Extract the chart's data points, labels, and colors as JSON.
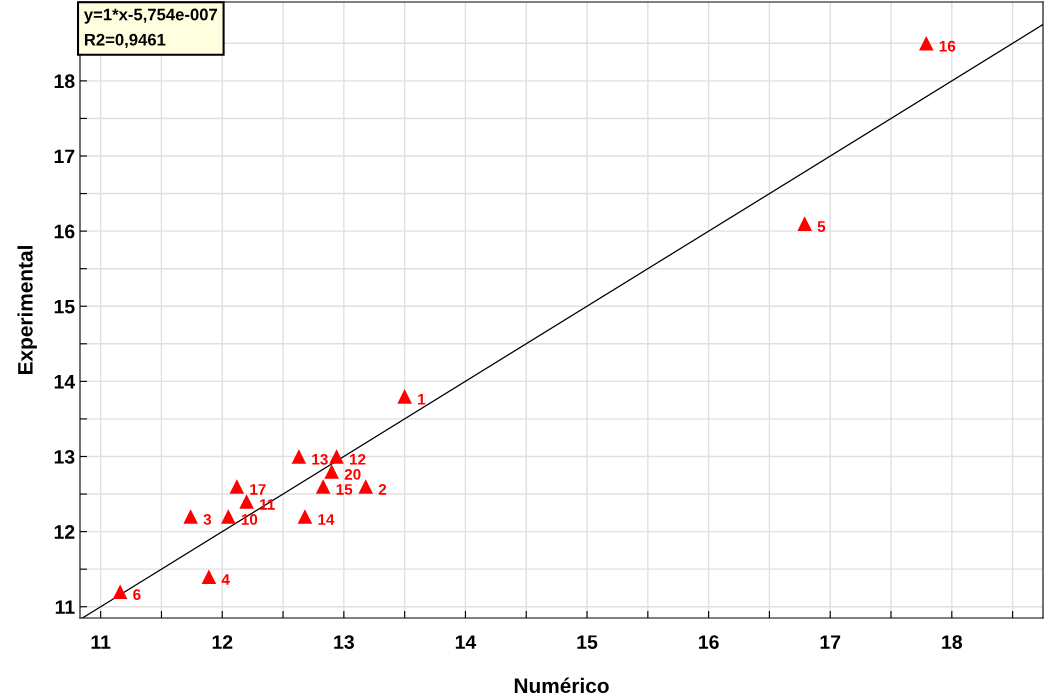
{
  "chart_data": {
    "type": "scatter",
    "xlabel": "Numérico",
    "ylabel": "Experimental",
    "annotations": [
      "y=1*x-5,754e-007\nR2=0,9461",
      {
        "text": "1",
        "x": 13.5,
        "y": 13.8
      },
      {
        "text": "2",
        "x": 13.18,
        "y": 12.6
      },
      {
        "text": "3",
        "x": 11.74,
        "y": 12.2
      },
      {
        "text": "4",
        "x": 11.89,
        "y": 11.4
      },
      {
        "text": "5",
        "x": 16.79,
        "y": 16.1
      },
      {
        "text": "6",
        "x": 11.16,
        "y": 11.2
      },
      {
        "text": "10",
        "x": 12.05,
        "y": 12.2
      },
      {
        "text": "11",
        "x": 12.2,
        "y": 12.4
      },
      {
        "text": "12",
        "x": 12.94,
        "y": 13.0
      },
      {
        "text": "13",
        "x": 12.63,
        "y": 13.0
      },
      {
        "text": "14",
        "x": 12.68,
        "y": 12.2
      },
      {
        "text": "15",
        "x": 12.83,
        "y": 12.6
      },
      {
        "text": "16",
        "x": 17.79,
        "y": 18.5
      },
      {
        "text": "17",
        "x": 12.12,
        "y": 12.6
      },
      {
        "text": "20",
        "x": 12.9,
        "y": 12.8
      }
    ],
    "series": [
      {
        "color": "#ff0000",
        "x": [
          13.5,
          13.18,
          11.74,
          11.89,
          16.79,
          11.16,
          12.05,
          12.2,
          12.94,
          12.63,
          12.68,
          12.83,
          17.79,
          12.12,
          12.9
        ],
        "values": [
          13.8,
          12.6,
          12.2,
          11.4,
          16.1,
          11.2,
          12.2,
          12.4,
          13.0,
          13.0,
          12.2,
          12.6,
          18.5,
          12.6,
          12.8
        ],
        "marker": "triangle"
      },
      {
        "type": "line",
        "color": "#000000",
        "x": [
          10.85,
          18.75
        ],
        "values": [
          10.85,
          18.75
        ],
        "line_style": "solid"
      }
    ],
    "xlim": [
      10.83,
      18.75
    ],
    "ylim": [
      10.85,
      19.05
    ],
    "xticks": [
      11,
      {
        "value": 11.5,
        "label": null
      },
      12,
      {
        "value": 12.5,
        "label": null
      },
      13,
      {
        "value": 13.5,
        "label": null
      },
      14,
      {
        "value": 14.5,
        "label": null
      },
      15,
      {
        "value": 15.5,
        "label": null
      },
      16,
      {
        "value": 16.5,
        "label": null
      },
      17,
      {
        "value": 17.5,
        "label": null
      },
      18,
      {
        "value": 18.5,
        "label": null
      }
    ],
    "yticks": [
      11,
      {
        "value": 11.5,
        "label": null
      },
      12,
      {
        "value": 12.5,
        "label": null
      },
      13,
      {
        "value": 13.5,
        "label": null
      },
      14,
      {
        "value": 14.5,
        "label": null
      },
      15,
      {
        "value": 15.5,
        "label": null
      },
      16,
      {
        "value": 16.5,
        "label": null
      },
      17,
      {
        "value": 17.5,
        "label": null
      },
      18,
      {
        "value": 18.5,
        "label": null
      }
    ],
    "grid": true
  }
}
